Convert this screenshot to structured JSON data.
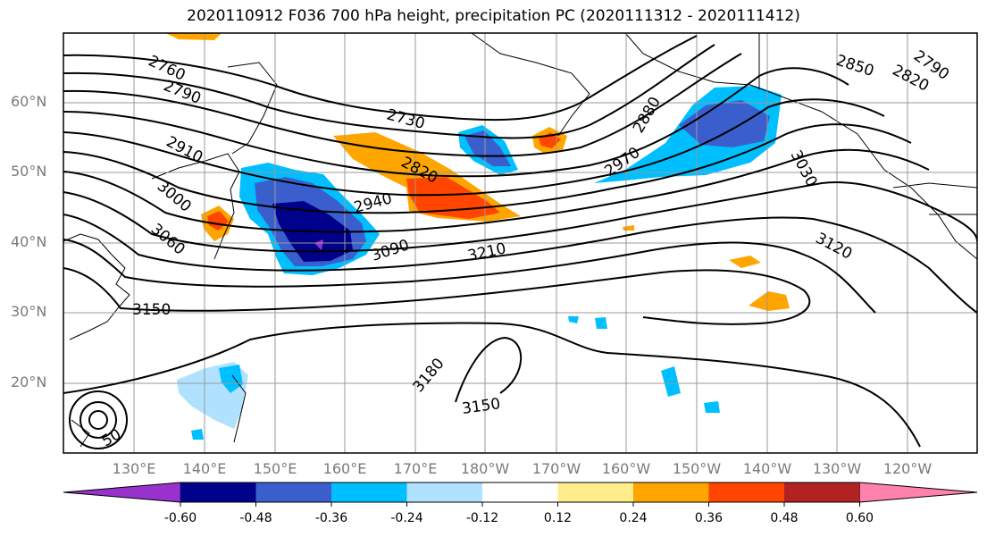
{
  "title": "2020110912 F036 700 hPa height, precipitation PC (2020111312 - 2020111412)",
  "lat_labels": [
    "60°N",
    "50°N",
    "40°N",
    "30°N",
    "20°N"
  ],
  "lon_labels": [
    "130°E",
    "140°E",
    "150°E",
    "160°E",
    "170°E",
    "180°W",
    "170°W",
    "160°W",
    "150°W",
    "140°W",
    "130°W",
    "120°W"
  ],
  "contour_labels": [
    "2760",
    "2790",
    "2730",
    "2850",
    "2820",
    "2790",
    "2910",
    "3000",
    "2820",
    "2940",
    "3060",
    "3090",
    "3210",
    "2970",
    "2880",
    "3030",
    "3120",
    "3150",
    "3180",
    "3150",
    "50"
  ],
  "colorbar": {
    "ticks": [
      "-0.60",
      "-0.48",
      "-0.36",
      "-0.24",
      "-0.12",
      "0.12",
      "0.24",
      "0.36",
      "0.48",
      "0.60"
    ],
    "colors": [
      "#9932cc",
      "#00008b",
      "#3a5fcd",
      "#00bfff",
      "#b0e2ff",
      "#ffffff",
      "#ffec8b",
      "#ffa500",
      "#ff4500",
      "#b22222",
      "#ff82ab"
    ]
  }
}
